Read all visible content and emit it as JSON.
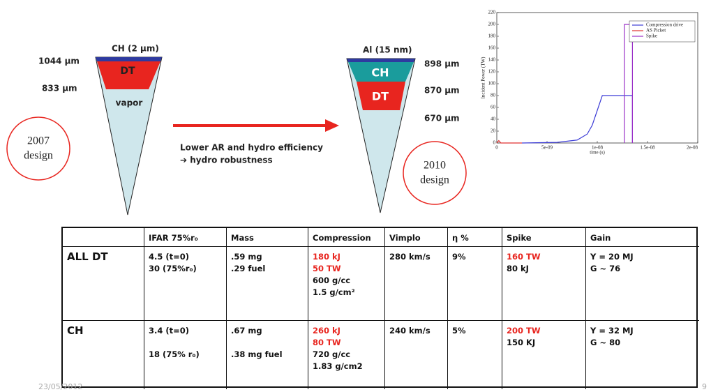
{
  "left_design": {
    "layer_label": "CH (2 μm)",
    "outer_radius": "1044 μm",
    "inner_radius": "833 μm",
    "fuel": "DT",
    "core": "vapor",
    "badge_year": "2007",
    "badge_word": "design"
  },
  "right_design": {
    "layer_label": "Al (15 nm)",
    "r1": "898 μm",
    "r2": "870 μm",
    "r3": "670 μm",
    "ablator": "CH",
    "fuel": "DT",
    "badge_year": "2010",
    "badge_word": "design"
  },
  "arrow_text": [
    "Lower AR and hydro efficiency",
    "➔ hydro robustness"
  ],
  "chart_data": {
    "type": "line",
    "x_label": "time (s)",
    "y_label": "Incident Power (TW)",
    "xlim": [
      0,
      2e-08
    ],
    "xticks": [
      0,
      {
        "value": 5e-09,
        "label": "5e-09"
      },
      {
        "value": 1e-08,
        "label": "1e-08"
      },
      {
        "value": 1.5e-08,
        "label": "1.5e-08"
      },
      {
        "value": 2e-08,
        "label": "2e-08"
      }
    ],
    "ylim": [
      0,
      220
    ],
    "yticks": [
      0,
      20,
      40,
      60,
      80,
      100,
      120,
      140,
      160,
      180,
      200,
      220
    ],
    "legend": "upper right",
    "series": [
      {
        "name": "Compression drive",
        "color": "#3b3bd6",
        "x": [
          2.5e-09,
          6e-09,
          8e-09,
          9e-09,
          9.5e-09,
          1e-08,
          1.05e-08,
          1.35e-08,
          1.35e-08
        ],
        "values": [
          0,
          1,
          5,
          15,
          30,
          55,
          80,
          80,
          0
        ]
      },
      {
        "name": "AS Picket",
        "color": "#e03030",
        "x": [
          0,
          2e-10,
          4e-10,
          2e-09,
          2.5e-09
        ],
        "values": [
          0,
          4,
          0,
          0,
          0
        ]
      },
      {
        "name": "Spike",
        "color": "#9b30c8",
        "x": [
          1.27e-08,
          1.27e-08,
          1.35e-08,
          1.35e-08
        ],
        "values": [
          0,
          200,
          200,
          0
        ]
      }
    ]
  },
  "table": {
    "header": [
      "IFAR 75%r₀",
      "Mass",
      "Compression",
      "Vimplo",
      "η %",
      "Spike",
      "Gain"
    ],
    "highlight_color": "#e8251f",
    "rows": [
      {
        "label": "ALL DT",
        "cells": [
          [
            "4.5 (t=0)",
            "30 (75%r₀)"
          ],
          [
            ".59 mg",
            ".29 fuel"
          ],
          [
            {
              "text": "180 kJ",
              "highlight": true
            },
            {
              "text": "50 TW",
              "highlight": true
            },
            "600 g/cc",
            "1.5 g/cm²"
          ],
          [
            "280 km/s"
          ],
          [
            "9%"
          ],
          [
            {
              "text": "160 TW",
              "highlight": true
            },
            "80 kJ"
          ],
          [
            "Y = 20 MJ",
            "G ~ 76"
          ]
        ]
      },
      {
        "label": "CH",
        "cells": [
          [
            "3.4 (t=0)",
            "18 (75% r₀)"
          ],
          [
            ".67 mg",
            ".38 mg fuel"
          ],
          [
            {
              "text": "260 kJ",
              "highlight": true
            },
            {
              "text": "80 TW",
              "highlight": true
            },
            "720 g/cc",
            "1.83 g/cm2"
          ],
          [
            "240 km/s"
          ],
          [
            "5%"
          ],
          [
            {
              "text": "200 TW",
              "highlight": true
            },
            "150 KJ"
          ],
          [
            "Y = 32 MJ",
            "G ~ 80"
          ]
        ]
      }
    ]
  },
  "footer": {
    "date": "23/05/2012",
    "page": "9"
  }
}
